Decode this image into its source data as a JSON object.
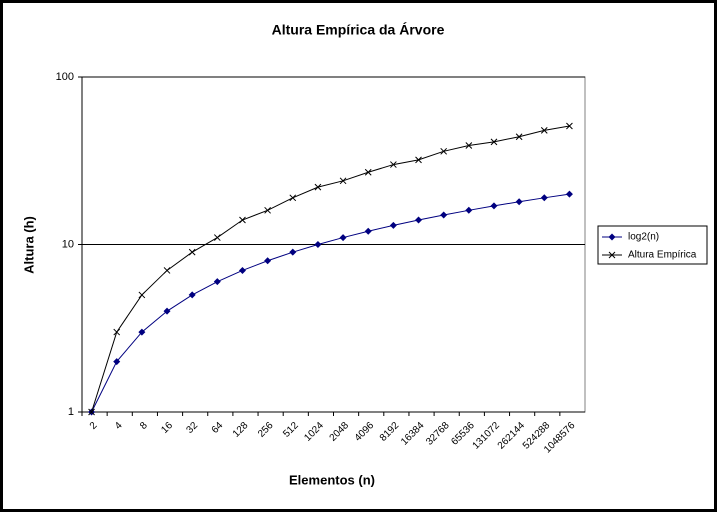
{
  "chart_data": {
    "type": "line",
    "title": "Altura Empírica da Árvore",
    "x_label": "Elementos (n)",
    "y_label": "Altura (h)",
    "categories": [
      "2",
      "4",
      "8",
      "16",
      "32",
      "64",
      "128",
      "256",
      "512",
      "1024",
      "2048",
      "4096",
      "8192",
      "16384",
      "32768",
      "65536",
      "131072",
      "262144",
      "524288",
      "1048576"
    ],
    "series": [
      {
        "name": "log2(n)",
        "color": "#000080",
        "marker": "diamond",
        "values": [
          1,
          2,
          3,
          4,
          5,
          6,
          7,
          8,
          9,
          10,
          11,
          12,
          13,
          14,
          15,
          16,
          17,
          18,
          19,
          20
        ]
      },
      {
        "name": "Altura Empírica",
        "color": "#000000",
        "marker": "x",
        "values": [
          1,
          3,
          5,
          7,
          9,
          11,
          14,
          16,
          19,
          22,
          24,
          27,
          30,
          32,
          36,
          39,
          41,
          44,
          48,
          51
        ]
      }
    ],
    "ylim": [
      1,
      100
    ],
    "yticks": [
      1,
      10,
      100
    ],
    "log_y": true,
    "grid": true,
    "legend": "right"
  }
}
